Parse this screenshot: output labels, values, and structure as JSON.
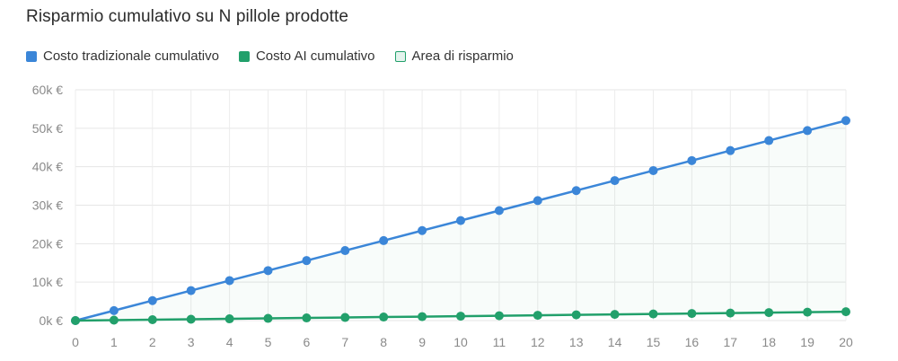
{
  "chart_data": {
    "type": "line",
    "title": "Risparmio cumulativo su N pillole prodotte",
    "xlabel": "",
    "ylabel": "",
    "x": [
      0,
      1,
      2,
      3,
      4,
      5,
      6,
      7,
      8,
      9,
      10,
      11,
      12,
      13,
      14,
      15,
      16,
      17,
      18,
      19,
      20
    ],
    "ylim": [
      0,
      60000
    ],
    "yticks": [
      0,
      10000,
      20000,
      30000,
      40000,
      50000,
      60000
    ],
    "ytick_labels": [
      "0k €",
      "10k €",
      "20k €",
      "30k €",
      "40k €",
      "50k €",
      "60k €"
    ],
    "grid": true,
    "legend_position": "top-left",
    "series": [
      {
        "name": "Costo tradizionale cumulativo",
        "color": "#3b86d8",
        "values": [
          0,
          2600,
          5200,
          7800,
          10400,
          13000,
          15600,
          18200,
          20800,
          23400,
          26000,
          28600,
          31200,
          33800,
          36400,
          39000,
          41600,
          44200,
          46800,
          49400,
          52000
        ]
      },
      {
        "name": "Costo AI cumulativo",
        "color": "#22a06b",
        "values": [
          0,
          115,
          230,
          345,
          460,
          575,
          690,
          805,
          920,
          1035,
          1150,
          1265,
          1380,
          1495,
          1610,
          1725,
          1840,
          1955,
          2070,
          2185,
          2300
        ]
      }
    ],
    "area_legend": {
      "name": "Area di risparmio",
      "color": "#22a06b"
    }
  }
}
